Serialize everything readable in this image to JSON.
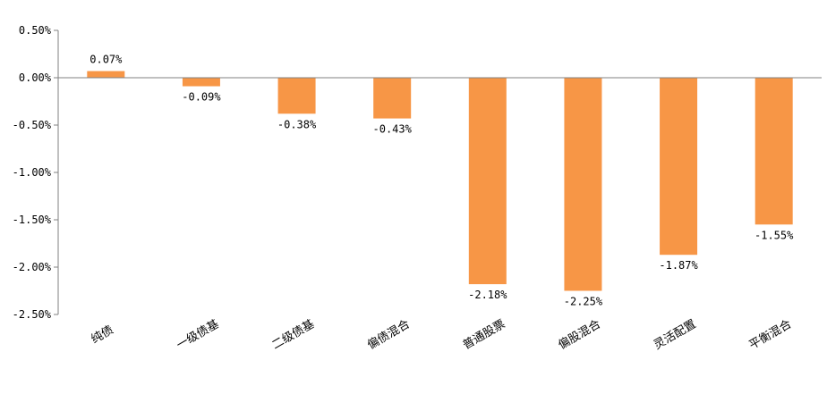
{
  "chart_data": {
    "type": "bar",
    "categories": [
      "纯债",
      "一级债基",
      "二级债基",
      "偏债混合",
      "普通股票",
      "偏股混合",
      "灵活配置",
      "平衡混合"
    ],
    "values": [
      0.07,
      -0.09,
      -0.38,
      -0.43,
      -2.18,
      -2.25,
      -1.87,
      -1.55
    ],
    "value_labels": [
      "0.07%",
      "-0.09%",
      "-0.38%",
      "-0.43%",
      "-2.18%",
      "-2.25%",
      "-1.87%",
      "-1.55%"
    ],
    "y_ticks": [
      0.5,
      0.0,
      -0.5,
      -1.0,
      -1.5,
      -2.0,
      -2.5
    ],
    "y_tick_labels": [
      "0.50%",
      "0.00%",
      "-0.50%",
      "-1.00%",
      "-1.50%",
      "-2.00%",
      "-2.50%"
    ],
    "ylim": [
      -2.5,
      0.5
    ],
    "grid": false,
    "bar_color": "#F79646",
    "axis_color": "#808080",
    "title": "",
    "xlabel": "",
    "ylabel": ""
  }
}
